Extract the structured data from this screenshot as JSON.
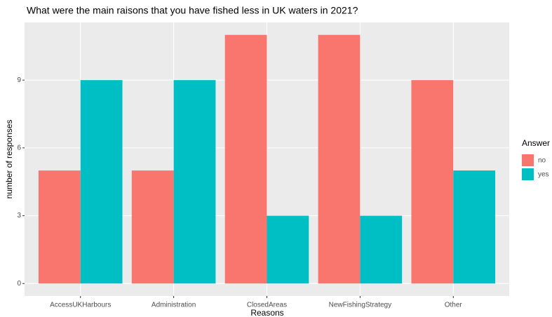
{
  "chart_data": {
    "type": "bar",
    "title": "What were the main raisons that you have fished less in UK waters in 2021?",
    "x_label": "Reasons",
    "y_label": "number of responses",
    "categories": [
      "AccessUKHarbours",
      "Administration",
      "ClosedAreas",
      "NewFishingStrategy",
      "Other"
    ],
    "series": [
      {
        "name": "no",
        "color": "#F8766D",
        "values": [
          5,
          5,
          11,
          11,
          9
        ]
      },
      {
        "name": "yes",
        "color": "#00BFC4",
        "values": [
          9,
          9,
          3,
          3,
          5
        ]
      }
    ],
    "legend_title": "Answer",
    "legend_position": "right",
    "ylim": [
      -0.55,
      11.55
    ],
    "yticks": [
      0,
      3,
      6,
      9
    ],
    "grid": true
  }
}
